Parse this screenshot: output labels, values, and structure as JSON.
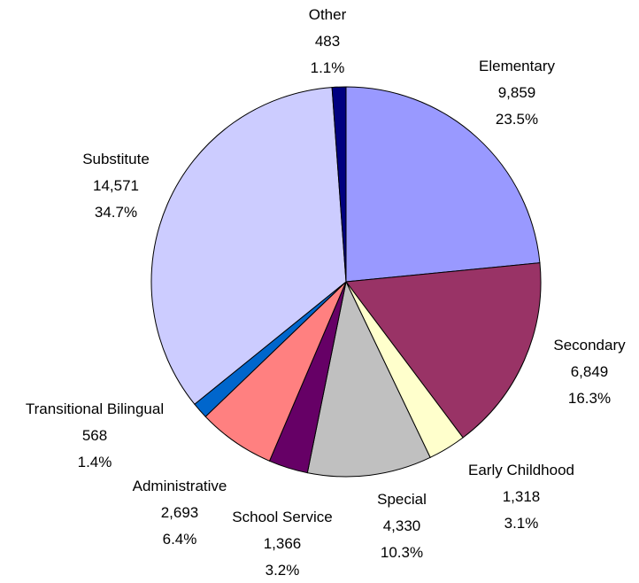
{
  "chart_data": {
    "type": "pie",
    "title": "",
    "start_angle_deg": 0,
    "direction": "clockwise",
    "slices": [
      {
        "name": "Elementary",
        "value_label": "9,859",
        "value": 9859,
        "percent_label": "23.5%",
        "color": "#9999ff"
      },
      {
        "name": "Secondary",
        "value_label": "6,849",
        "value": 6849,
        "percent_label": "16.3%",
        "color": "#993366"
      },
      {
        "name": "Early Childhood",
        "value_label": "1,318",
        "value": 1318,
        "percent_label": "3.1%",
        "color": "#ffffcc"
      },
      {
        "name": "Special",
        "value_label": "4,330",
        "value": 4330,
        "percent_label": "10.3%",
        "color": "#c0c0c0"
      },
      {
        "name": "School Service",
        "value_label": "1,366",
        "value": 1366,
        "percent_label": "3.2%",
        "color": "#660066"
      },
      {
        "name": "Administrative",
        "value_label": "2,693",
        "value": 2693,
        "percent_label": "6.4%",
        "color": "#ff8080"
      },
      {
        "name": "Transitional Bilingual",
        "value_label": "568",
        "value": 568,
        "percent_label": "1.4%",
        "color": "#0066cc"
      },
      {
        "name": "Substitute",
        "value_label": "14,571",
        "value": 14571,
        "percent_label": "34.7%",
        "color": "#ccccff"
      },
      {
        "name": "Other",
        "value_label": "483",
        "value": 483,
        "percent_label": "1.1%",
        "color": "#000080"
      }
    ]
  }
}
